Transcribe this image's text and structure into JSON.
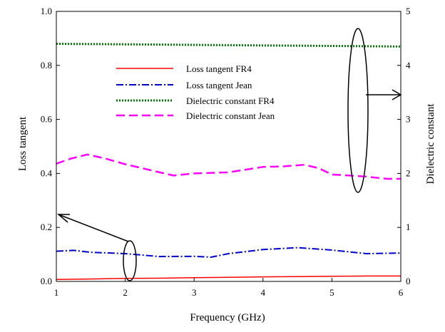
{
  "chart_data": {
    "type": "line",
    "xlabel": "Frequency (GHz)",
    "ylabel_left": "Loss tangent",
    "ylabel_right": "Dielectric constant",
    "xlim": [
      1,
      6
    ],
    "ylim_left": [
      0.0,
      1.0
    ],
    "ylim_right": [
      0,
      5
    ],
    "x_ticks": [
      1,
      2,
      3,
      4,
      5,
      6
    ],
    "y_left_ticks": [
      "0.0",
      "0.2",
      "0.4",
      "0.6",
      "0.8",
      "1.0"
    ],
    "y_right_ticks": [
      "0",
      "1",
      "2",
      "3",
      "4",
      "5"
    ],
    "grid": false,
    "legend_position": "upper-left-inside",
    "series": [
      {
        "name": "Loss tangent FR4",
        "axis": "left",
        "color": "#ff0000",
        "dash": "solid",
        "x": [
          1,
          1.5,
          2,
          2.5,
          3,
          3.5,
          4,
          4.5,
          5,
          5.5,
          6
        ],
        "y": [
          0.007,
          0.009,
          0.011,
          0.012,
          0.014,
          0.015,
          0.017,
          0.018,
          0.019,
          0.02,
          0.02
        ]
      },
      {
        "name": "Loss tangent Jean",
        "axis": "left",
        "color": "#0000cc",
        "dash": "dashdot",
        "x": [
          1,
          1.25,
          1.5,
          2,
          2.5,
          3,
          3.25,
          3.5,
          4,
          4.5,
          5,
          5.5,
          6
        ],
        "y": [
          0.112,
          0.115,
          0.108,
          0.103,
          0.092,
          0.093,
          0.09,
          0.103,
          0.118,
          0.125,
          0.116,
          0.103,
          0.105
        ]
      },
      {
        "name": "Dielectric constant FR4",
        "axis": "right",
        "color": "#008000",
        "dash": "dotted",
        "x": [
          1,
          2,
          3,
          4,
          5,
          6
        ],
        "y": [
          4.4,
          4.39,
          4.38,
          4.37,
          4.36,
          4.35
        ]
      },
      {
        "name": "Dielectric constant Jean",
        "axis": "right",
        "color": "#ff00ff",
        "dash": "dashed",
        "x": [
          1,
          1.2,
          1.45,
          1.7,
          2.0,
          2.3,
          2.7,
          3.0,
          3.5,
          4.0,
          4.3,
          4.6,
          4.8,
          5.0,
          5.5,
          5.8,
          6.0
        ],
        "y": [
          2.18,
          2.27,
          2.35,
          2.28,
          2.17,
          2.08,
          1.96,
          2.0,
          2.02,
          2.12,
          2.13,
          2.16,
          2.1,
          1.98,
          1.94,
          1.9,
          1.9
        ]
      }
    ]
  }
}
